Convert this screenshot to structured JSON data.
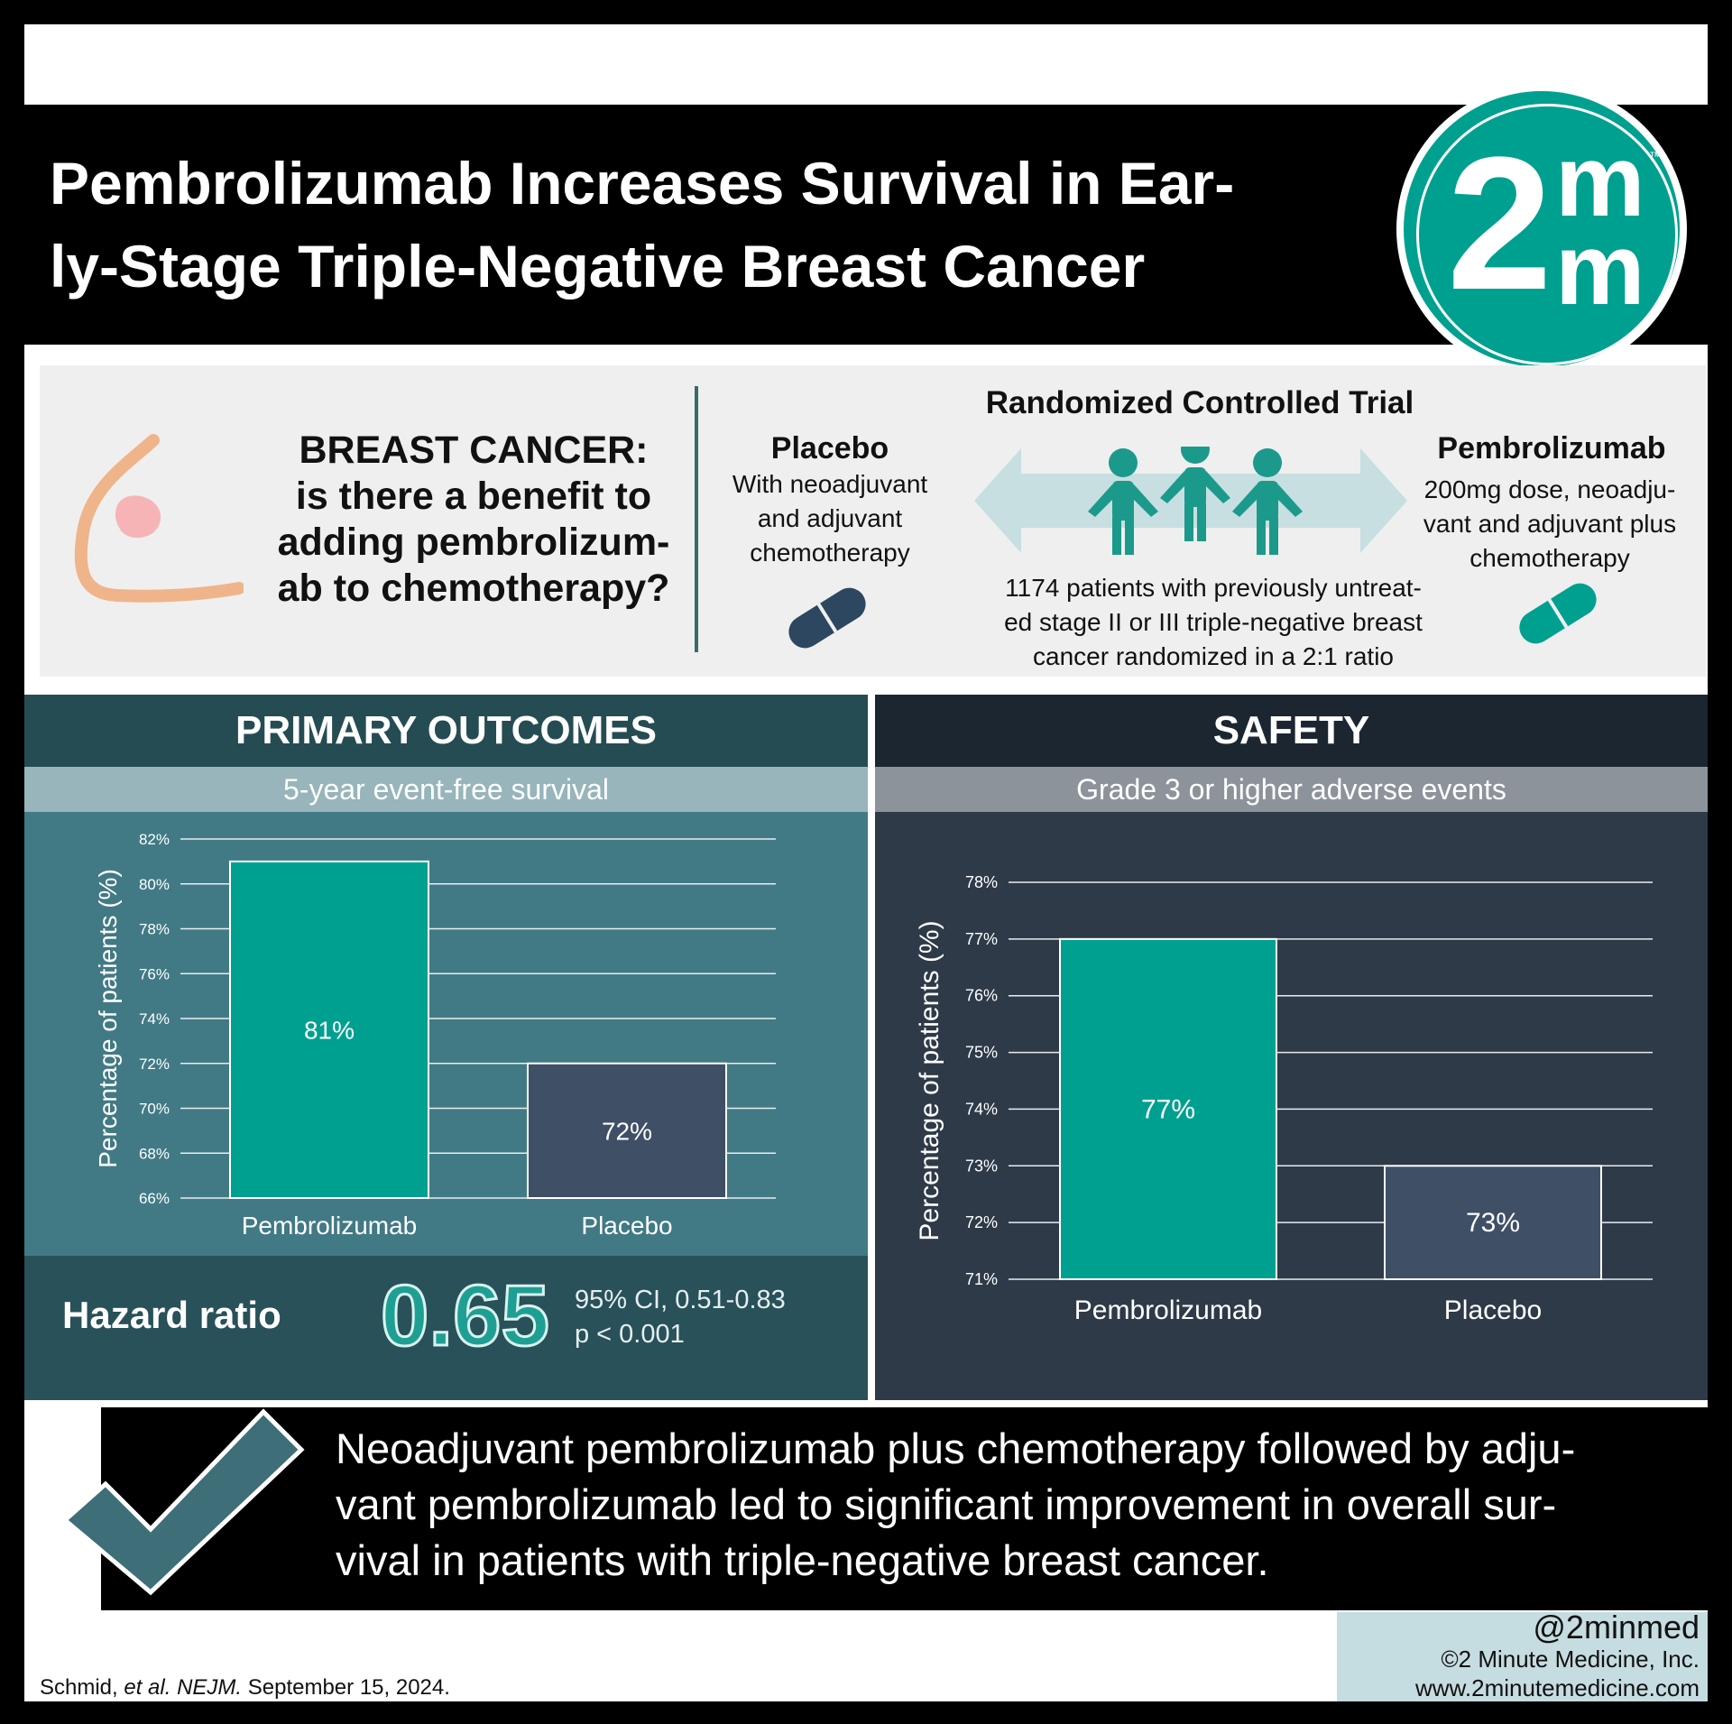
{
  "header": {
    "title": "Pembrolizumab Increases Survival in Ear-\nly-Stage Triple-Negative Breast Cancer",
    "logo_main": "2",
    "logo_m_top": "m",
    "logo_m_bottom": "m",
    "logo_tm": "™"
  },
  "intro": {
    "question": "BREAST CANCER: is there a benefit to adding pembrolizum-ab to chemotherapy?",
    "question_lines": [
      "BREAST CANCER:",
      "is there a benefit to",
      "adding pembrolizum-",
      "ab to chemotherapy?"
    ],
    "trial_title": "Randomized Controlled Trial",
    "placebo_name": "Placebo",
    "placebo_desc_lines": [
      "With neoadjuvant",
      "and adjuvant",
      "chemotherapy"
    ],
    "pembro_name": "Pembrolizumab",
    "pembro_desc_lines": [
      "200mg dose, neoadju-",
      "vant and adjuvant plus",
      "chemotherapy"
    ],
    "patients_lines": [
      "1174 patients with previously untreat-",
      "ed stage II or III triple-negative breast",
      "cancer randomized in a 2:1 ratio"
    ],
    "colors": {
      "placebo_pill": "#2c475f",
      "pembro_pill": "#00a090",
      "people": "#1b9a8c",
      "arrow": "#c7dfe0"
    }
  },
  "primary": {
    "heading": "PRIMARY OUTCOMES",
    "subheading": "5-year event-free survival",
    "hazard_label": "Hazard ratio",
    "hazard_value": "0.65",
    "ci_text": "95% CI, 0.51-0.83",
    "p_text": "p < 0.001"
  },
  "safety": {
    "heading": "SAFETY",
    "subheading": "Grade 3 or higher adverse events"
  },
  "chart_data": [
    {
      "type": "bar",
      "title": "5-year event-free survival",
      "categories": [
        "Pembrolizumab",
        "Placebo"
      ],
      "values": [
        81,
        72
      ],
      "value_labels": [
        "81%",
        "72%"
      ],
      "ylabel": "Percentage of patients (%)",
      "ylim": [
        66,
        82
      ],
      "yticks": [
        66,
        68,
        70,
        72,
        74,
        76,
        78,
        80,
        82
      ],
      "ytick_labels": [
        "66%",
        "68%",
        "70%",
        "72%",
        "74%",
        "76%",
        "78%",
        "80%",
        "82%"
      ],
      "grid": true,
      "colors": [
        "#00a090",
        "#3f4f66"
      ]
    },
    {
      "type": "bar",
      "title": "Grade 3 or higher adverse events",
      "categories": [
        "Pembrolizumab",
        "Placebo"
      ],
      "values": [
        77,
        73
      ],
      "value_labels": [
        "77%",
        "73%"
      ],
      "ylabel": "Percentage of patients (%)",
      "ylim": [
        71,
        78
      ],
      "yticks": [
        71,
        72,
        73,
        74,
        75,
        76,
        77,
        78
      ],
      "ytick_labels": [
        "71%",
        "72%",
        "73%",
        "74%",
        "75%",
        "76%",
        "77%",
        "78%"
      ],
      "grid": true,
      "colors": [
        "#00a090",
        "#3f4f66"
      ]
    }
  ],
  "conclusion": {
    "text": "Neoadjuvant pembrolizumab plus chemotherapy followed by adju-\nvant pembrolizumab led to significant improvement in overall sur-\nvival in patients with triple-negative breast cancer."
  },
  "footer": {
    "handle": "@2minmed",
    "copyright": "©2 Minute Medicine, Inc.",
    "website": "www.2minutemedicine.com",
    "citation_author": "Schmid,",
    "citation_etal": "et al.",
    "citation_journal": "NEJM.",
    "citation_date": "September 15, 2024."
  }
}
